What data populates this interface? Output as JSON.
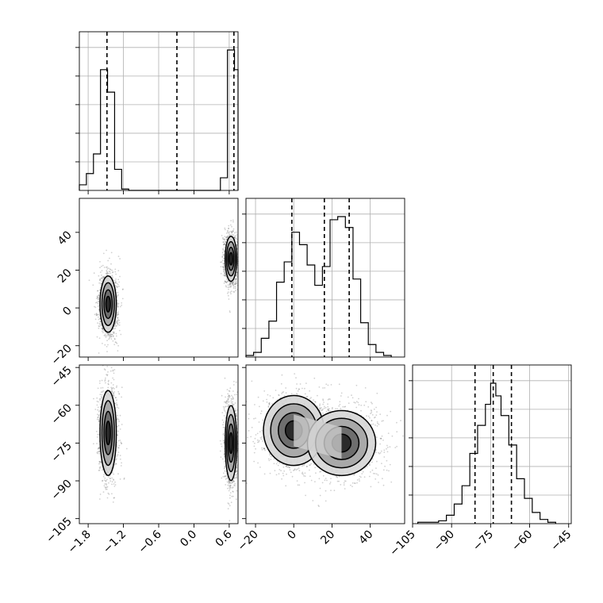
{
  "chart_data": [
    {
      "type": "histogram",
      "panel": "param-1-marginal",
      "grid": true,
      "x_ticks": [
        "−1.8",
        "−1.2",
        "−0.6",
        "0.0",
        "0.6"
      ],
      "xlim": [
        -1.95,
        0.75
      ],
      "bins": [
        {
          "x0": -1.95,
          "x1": -1.83,
          "count": 4
        },
        {
          "x0": -1.83,
          "x1": -1.71,
          "count": 12
        },
        {
          "x0": -1.71,
          "x1": -1.59,
          "count": 26
        },
        {
          "x0": -1.59,
          "x1": -1.47,
          "count": 86
        },
        {
          "x0": -1.47,
          "x1": -1.35,
          "count": 70
        },
        {
          "x0": -1.35,
          "x1": -1.23,
          "count": 15
        },
        {
          "x0": -1.23,
          "x1": -1.11,
          "count": 1
        },
        {
          "x0": -1.11,
          "x1": 0.45,
          "count": 0
        },
        {
          "x0": 0.45,
          "x1": 0.57,
          "count": 9
        },
        {
          "x0": 0.57,
          "x1": 0.69,
          "count": 100
        },
        {
          "x0": 0.69,
          "x1": 0.75,
          "count": 86
        }
      ],
      "quantiles": [
        -1.48,
        -0.29,
        0.68
      ]
    },
    {
      "type": "histogram",
      "panel": "param-2-marginal",
      "grid": true,
      "xlim": [
        -25,
        58
      ],
      "bins": [
        {
          "x0": -25,
          "x1": -21,
          "count": 1
        },
        {
          "x0": -21,
          "x1": -17,
          "count": 3
        },
        {
          "x0": -17,
          "x1": -13,
          "count": 12
        },
        {
          "x0": -13,
          "x1": -9,
          "count": 23
        },
        {
          "x0": -9,
          "x1": -5,
          "count": 48
        },
        {
          "x0": -5,
          "x1": -1,
          "count": 61
        },
        {
          "x0": -1,
          "x1": 3,
          "count": 80
        },
        {
          "x0": 3,
          "x1": 7,
          "count": 72
        },
        {
          "x0": 7,
          "x1": 11,
          "count": 59
        },
        {
          "x0": 11,
          "x1": 15,
          "count": 46
        },
        {
          "x0": 15,
          "x1": 19,
          "count": 58
        },
        {
          "x0": 19,
          "x1": 23,
          "count": 88
        },
        {
          "x0": 23,
          "x1": 27,
          "count": 90
        },
        {
          "x0": 27,
          "x1": 31,
          "count": 83
        },
        {
          "x0": 31,
          "x1": 35,
          "count": 50
        },
        {
          "x0": 35,
          "x1": 39,
          "count": 22
        },
        {
          "x0": 39,
          "x1": 43,
          "count": 8
        },
        {
          "x0": 43,
          "x1": 47,
          "count": 3
        },
        {
          "x0": 47,
          "x1": 51,
          "count": 1
        }
      ],
      "quantiles": [
        -1,
        16,
        29
      ]
    },
    {
      "type": "histogram",
      "panel": "param-3-marginal",
      "grid": true,
      "x_ticks": [
        "−105",
        "−90",
        "−75",
        "−60",
        "−45"
      ],
      "xlim": [
        -105,
        -44
      ],
      "bins": [
        {
          "x0": -103,
          "x1": -95,
          "count": 1
        },
        {
          "x0": -95,
          "x1": -92,
          "count": 2
        },
        {
          "x0": -92,
          "x1": -89,
          "count": 6
        },
        {
          "x0": -89,
          "x1": -86,
          "count": 14
        },
        {
          "x0": -86,
          "x1": -83,
          "count": 27
        },
        {
          "x0": -83,
          "x1": -80,
          "count": 50
        },
        {
          "x0": -80,
          "x1": -77,
          "count": 70
        },
        {
          "x0": -77,
          "x1": -75,
          "count": 85
        },
        {
          "x0": -75,
          "x1": -73,
          "count": 100
        },
        {
          "x0": -73,
          "x1": -71,
          "count": 91
        },
        {
          "x0": -71,
          "x1": -68,
          "count": 77
        },
        {
          "x0": -68,
          "x1": -65,
          "count": 56
        },
        {
          "x0": -65,
          "x1": -62,
          "count": 32
        },
        {
          "x0": -62,
          "x1": -59,
          "count": 18
        },
        {
          "x0": -59,
          "x1": -56,
          "count": 8
        },
        {
          "x0": -56,
          "x1": -53,
          "count": 3
        },
        {
          "x0": -53,
          "x1": -50,
          "count": 1
        }
      ],
      "quantiles": [
        -81,
        -74,
        -67
      ]
    },
    {
      "type": "scatter",
      "panel": "param-1-vs-param-2",
      "xlim": [
        -1.95,
        0.75
      ],
      "ylim": [
        -26,
        58
      ],
      "y_ticks": [
        "−20",
        "0",
        "20",
        "40"
      ],
      "clusters": [
        {
          "center": [
            -1.46,
            2
          ],
          "spread": [
            0.07,
            7.5
          ],
          "weight": 0.5
        },
        {
          "center": [
            0.63,
            26
          ],
          "spread": [
            0.05,
            6
          ],
          "weight": 0.5
        }
      ]
    },
    {
      "type": "scatter",
      "panel": "param-1-vs-param-3",
      "xlim": [
        -1.95,
        0.75
      ],
      "ylim": [
        -107,
        -44
      ],
      "y_ticks": [
        "−105",
        "−90",
        "−75",
        "−60",
        "−45"
      ],
      "x_ticks": [
        "−1.8",
        "−1.2",
        "−0.6",
        "0.0",
        "0.6"
      ],
      "clusters": [
        {
          "center": [
            -1.46,
            -71
          ],
          "spread": [
            0.07,
            8.5
          ],
          "weight": 0.5
        },
        {
          "center": [
            0.63,
            -75
          ],
          "spread": [
            0.05,
            7.5
          ],
          "weight": 0.5
        }
      ]
    },
    {
      "type": "scatter",
      "panel": "param-2-vs-param-3",
      "xlim": [
        -25,
        58
      ],
      "ylim": [
        -107,
        -44
      ],
      "x_ticks": [
        "−20",
        "0",
        "20",
        "40"
      ],
      "clusters": [
        {
          "center": [
            0,
            -70
          ],
          "spread": [
            8,
            7
          ],
          "weight": 0.5
        },
        {
          "center": [
            25,
            -75
          ],
          "spread": [
            9,
            6.5
          ],
          "weight": 0.5
        }
      ]
    }
  ]
}
